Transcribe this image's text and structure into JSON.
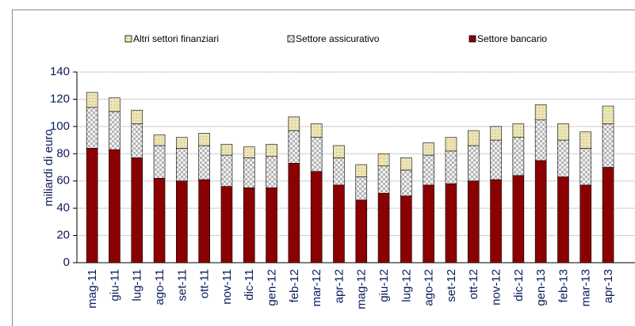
{
  "chart_data": {
    "type": "stacked-bar",
    "y_label": "miliardi di euro",
    "categories": [
      "mag-11",
      "giu-11",
      "lug-11",
      "ago-11",
      "set-11",
      "ott-11",
      "nov-11",
      "dic-11",
      "gen-12",
      "feb-12",
      "mar-12",
      "apr-12",
      "mag-12",
      "giu-12",
      "lug-12",
      "ago-12",
      "set-12",
      "ott-12",
      "nov-12",
      "dic-12",
      "gen-13",
      "feb-13",
      "mar-13",
      "apr-13"
    ],
    "series": [
      {
        "name": "Altri settori finanziari",
        "color": "#ece4b4",
        "values": [
          11,
          10,
          10,
          8,
          8,
          9,
          8,
          8,
          9,
          10,
          10,
          9,
          9,
          9,
          9,
          9,
          10,
          11,
          10,
          10,
          11,
          12,
          12,
          13
        ]
      },
      {
        "name": "Settore assicurativo",
        "color": "#d9d9d9",
        "values": [
          30,
          28,
          25,
          24,
          24,
          25,
          23,
          22,
          23,
          24,
          25,
          20,
          17,
          20,
          19,
          22,
          24,
          26,
          29,
          28,
          30,
          27,
          27,
          32
        ]
      },
      {
        "name": "Settore bancario",
        "color": "#8b0000",
        "values": [
          84,
          83,
          77,
          62,
          60,
          61,
          56,
          55,
          55,
          73,
          67,
          57,
          46,
          51,
          49,
          57,
          58,
          60,
          61,
          64,
          75,
          63,
          57,
          70
        ]
      }
    ],
    "ylim": [
      0,
      140
    ],
    "yticks": [
      0,
      20,
      40,
      60,
      80,
      100,
      120,
      140
    ],
    "grid": true
  }
}
